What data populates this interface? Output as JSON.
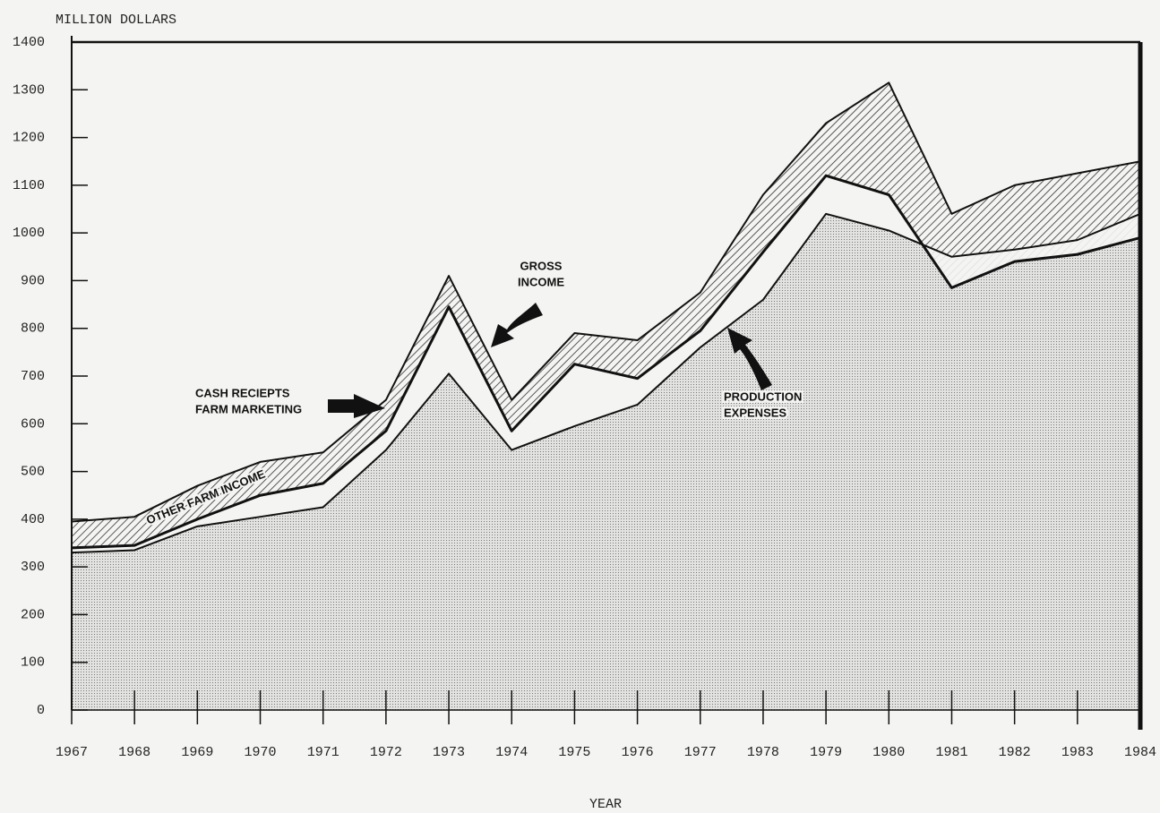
{
  "chart_data": {
    "type": "area",
    "y_label": "MILLION DOLLARS",
    "x_label": "YEAR",
    "x": [
      1967,
      1968,
      1969,
      1970,
      1971,
      1972,
      1973,
      1974,
      1975,
      1976,
      1977,
      1978,
      1979,
      1980,
      1981,
      1982,
      1983,
      1984
    ],
    "xlim": [
      1967,
      1984
    ],
    "xticks": [
      1967,
      1968,
      1969,
      1970,
      1971,
      1972,
      1973,
      1974,
      1975,
      1976,
      1977,
      1978,
      1979,
      1980,
      1981,
      1982,
      1983,
      1984
    ],
    "ylim": [
      0,
      1400
    ],
    "yticks": [
      0,
      100,
      200,
      300,
      400,
      500,
      600,
      700,
      800,
      900,
      1000,
      1100,
      1200,
      1300,
      1400
    ],
    "series": [
      {
        "color": "#111111",
        "values": [
          395,
          405,
          470,
          520,
          540,
          650,
          910,
          650,
          790,
          775,
          875,
          1080,
          1230,
          1315,
          1040,
          1100,
          1125,
          1150
        ]
      },
      {
        "color": "#111111",
        "values": [
          340,
          345,
          400,
          450,
          475,
          585,
          845,
          585,
          725,
          695,
          795,
          960,
          1120,
          1080,
          885,
          940,
          955,
          990
        ]
      },
      {
        "color": "#111111",
        "values": [
          330,
          335,
          385,
          405,
          425,
          545,
          705,
          545,
          595,
          640,
          760,
          860,
          1040,
          1005,
          950,
          965,
          985,
          1040
        ]
      }
    ],
    "annotations": [
      {
        "lines": [
          "GROSS",
          "INCOME"
        ]
      },
      {
        "lines": [
          "CASH RECIEPTS",
          "FARM MARKETING"
        ]
      },
      {
        "lines": [
          "PRODUCTION",
          "EXPENSES"
        ]
      },
      {
        "lines": [
          "OTHER FARM INCOME"
        ]
      }
    ]
  }
}
